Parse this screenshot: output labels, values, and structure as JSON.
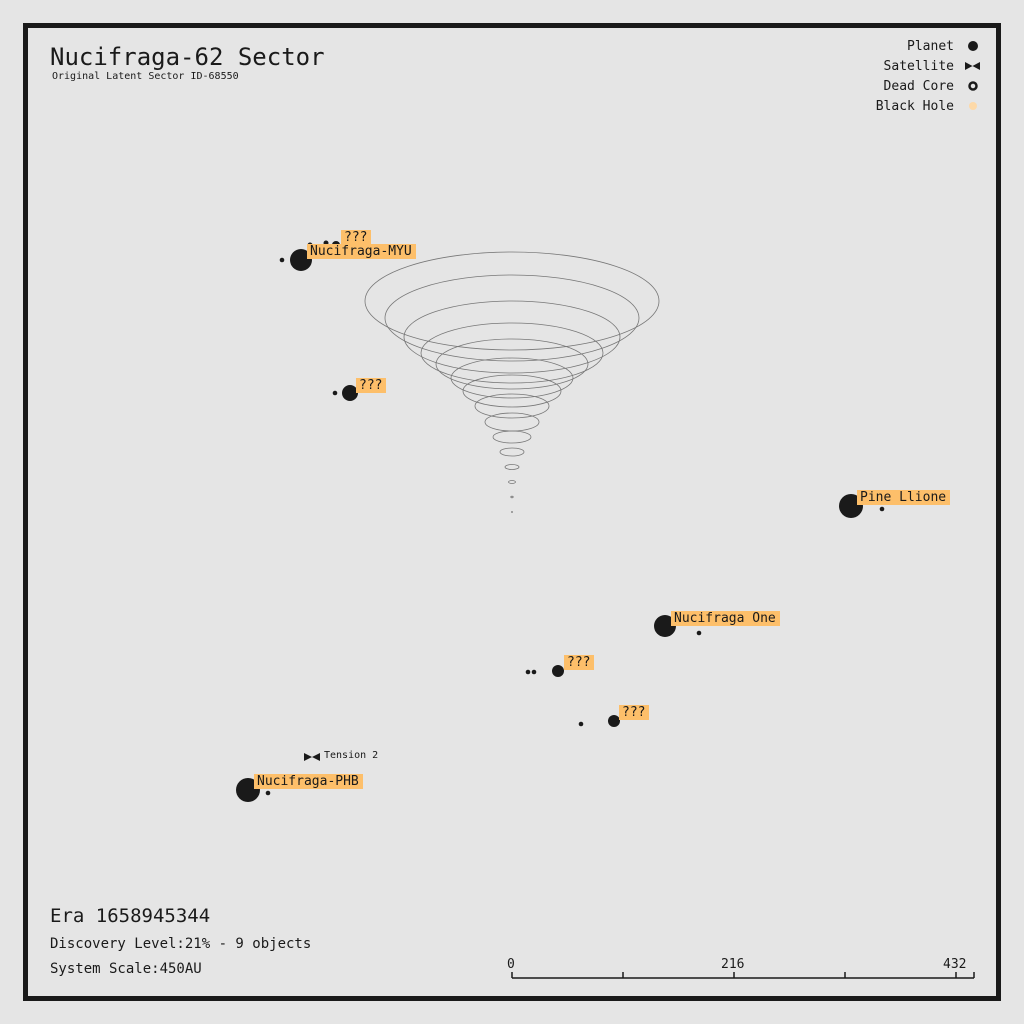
{
  "header": {
    "title": "Nucifraga-62 Sector",
    "subtitle": "Original Latent Sector ID-68550"
  },
  "legend": [
    {
      "label": "Planet"
    },
    {
      "label": "Satellite"
    },
    {
      "label": "Dead Core"
    },
    {
      "label": "Black Hole"
    }
  ],
  "objects": [
    {
      "label": "???"
    },
    {
      "label": "Nucifraga-MYU"
    },
    {
      "label": "???"
    },
    {
      "label": "Pine Llione"
    },
    {
      "label": "Nucifraga One"
    },
    {
      "label": "???"
    },
    {
      "label": "???"
    },
    {
      "label": "Tension 2"
    },
    {
      "label": "Nucifraga-PHB"
    }
  ],
  "footer": {
    "era": "Era 1658945344",
    "discovery": "Discovery Level:21% - 9 objects",
    "scale": "System Scale:450AU"
  },
  "scale_bar": {
    "ticks": [
      0,
      216,
      432
    ]
  }
}
